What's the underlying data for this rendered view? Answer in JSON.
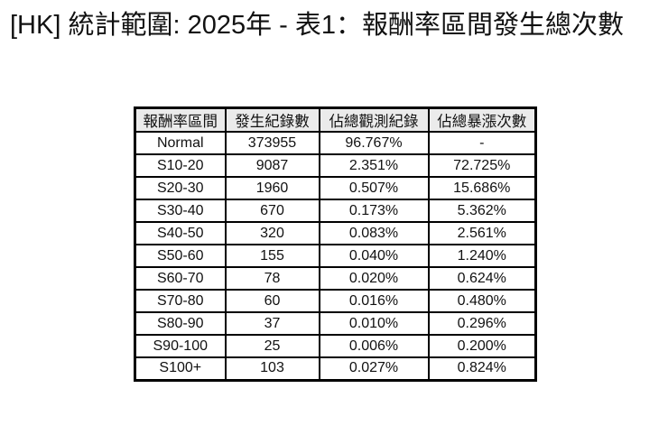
{
  "page": {
    "background": "#ffffff"
  },
  "title": "[HK] 統計範圍: 2025年 - 表1：報酬率區間發生總次數",
  "table": {
    "columns": [
      "報酬率區間",
      "發生紀錄數",
      "佔總觀測紀錄",
      "佔總暴漲次數"
    ],
    "rows": [
      [
        "Normal",
        "373955",
        "96.767%",
        "-"
      ],
      [
        "S10-20",
        "9087",
        "2.351%",
        "72.725%"
      ],
      [
        "S20-30",
        "1960",
        "0.507%",
        "15.686%"
      ],
      [
        "S30-40",
        "670",
        "0.173%",
        "5.362%"
      ],
      [
        "S40-50",
        "320",
        "0.083%",
        "2.561%"
      ],
      [
        "S50-60",
        "155",
        "0.040%",
        "1.240%"
      ],
      [
        "S60-70",
        "78",
        "0.020%",
        "0.624%"
      ],
      [
        "S70-80",
        "60",
        "0.016%",
        "0.480%"
      ],
      [
        "S80-90",
        "37",
        "0.010%",
        "0.296%"
      ],
      [
        "S90-100",
        "25",
        "0.006%",
        "0.200%"
      ],
      [
        "S100+",
        "103",
        "0.027%",
        "0.824%"
      ]
    ],
    "colors": {
      "border": "#000000",
      "header_bg": "#ebebeb",
      "text": "#111111",
      "background": "#ffffff"
    }
  },
  "chart_data": {
    "type": "table",
    "title": "[HK] 統計範圍: 2025年 - 表1：報酬率區間發生總次數",
    "columns": [
      "報酬率區間",
      "發生紀錄數",
      "佔總觀測紀錄",
      "佔總暴漲次數"
    ],
    "rows": [
      {
        "interval": "Normal",
        "occurrence_count": 373955,
        "pct_of_total_observations": "96.767%",
        "pct_of_total_surges": "-"
      },
      {
        "interval": "S10-20",
        "occurrence_count": 9087,
        "pct_of_total_observations": "2.351%",
        "pct_of_total_surges": "72.725%"
      },
      {
        "interval": "S20-30",
        "occurrence_count": 1960,
        "pct_of_total_observations": "0.507%",
        "pct_of_total_surges": "15.686%"
      },
      {
        "interval": "S30-40",
        "occurrence_count": 670,
        "pct_of_total_observations": "0.173%",
        "pct_of_total_surges": "5.362%"
      },
      {
        "interval": "S40-50",
        "occurrence_count": 320,
        "pct_of_total_observations": "0.083%",
        "pct_of_total_surges": "2.561%"
      },
      {
        "interval": "S50-60",
        "occurrence_count": 155,
        "pct_of_total_observations": "0.040%",
        "pct_of_total_surges": "1.240%"
      },
      {
        "interval": "S60-70",
        "occurrence_count": 78,
        "pct_of_total_observations": "0.020%",
        "pct_of_total_surges": "0.624%"
      },
      {
        "interval": "S70-80",
        "occurrence_count": 60,
        "pct_of_total_observations": "0.016%",
        "pct_of_total_surges": "0.480%"
      },
      {
        "interval": "S80-90",
        "occurrence_count": 37,
        "pct_of_total_observations": "0.010%",
        "pct_of_total_surges": "0.296%"
      },
      {
        "interval": "S90-100",
        "occurrence_count": 25,
        "pct_of_total_observations": "0.006%",
        "pct_of_total_surges": "0.200%"
      },
      {
        "interval": "S100+",
        "occurrence_count": 103,
        "pct_of_total_observations": "0.027%",
        "pct_of_total_surges": "0.824%"
      }
    ]
  }
}
